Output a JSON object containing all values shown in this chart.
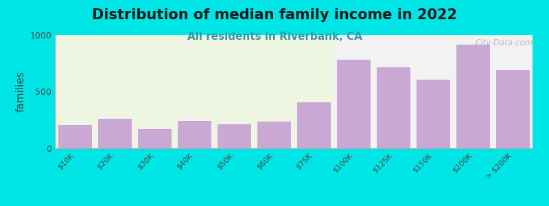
{
  "title": "Distribution of median family income in 2022",
  "subtitle": "All residents in Riverbank, CA",
  "xlabel": "",
  "ylabel": "families",
  "background_color": "#00e5e5",
  "plot_bg_color_left": "#eef5e0",
  "plot_bg_color_right": "#f2f2f2",
  "bar_color": "#c9a8d4",
  "bar_edgecolor": "#ffffff",
  "categories": [
    "$10K",
    "$20K",
    "$30K",
    "$40K",
    "$50K",
    "$60K",
    "$75K",
    "$100K",
    "$125K",
    "$150K",
    "$200K",
    "> $200K"
  ],
  "values": [
    210,
    265,
    175,
    250,
    220,
    245,
    415,
    790,
    720,
    610,
    920,
    700
  ],
  "ylim": [
    0,
    1000
  ],
  "yticks": [
    0,
    500,
    1000
  ],
  "watermark": "City-Data.com",
  "title_fontsize": 15,
  "subtitle_fontsize": 11,
  "ylabel_fontsize": 11,
  "split_index": 7
}
